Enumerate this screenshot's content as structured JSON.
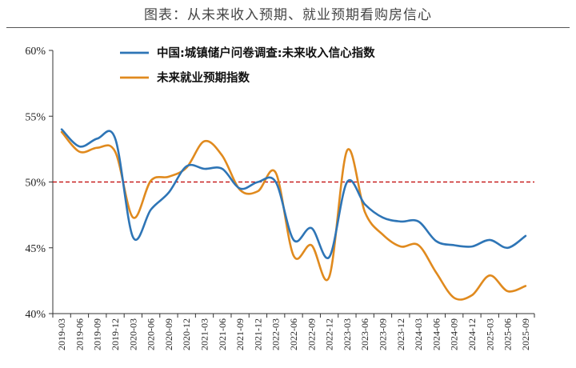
{
  "chart_data": {
    "type": "line",
    "title": "图表：从未来收入预期、就业预期看购房信心",
    "xlabel": "",
    "ylabel": "",
    "ylim": [
      40,
      60
    ],
    "y_ticks": [
      "40%",
      "45%",
      "50%",
      "55%",
      "60%"
    ],
    "y_tick_values": [
      40,
      45,
      50,
      55,
      60
    ],
    "reference_line": 50,
    "categories": [
      "2019-03",
      "2019-06",
      "2019-09",
      "2019-12",
      "2020-03",
      "2020-06",
      "2020-09",
      "2020-12",
      "2021-03",
      "2021-06",
      "2021-09",
      "2021-12",
      "2022-03",
      "2022-06",
      "2022-09",
      "2022-12",
      "2023-03",
      "2023-06",
      "2023-09",
      "2023-12",
      "2024-03",
      "2024-06",
      "2024-09",
      "2024-12",
      "2025-03",
      "2025-06",
      "2025-09"
    ],
    "legend_position": "top-left",
    "grid": false,
    "series": [
      {
        "name": "中国:城镇储户问卷调查:未来收入信心指数",
        "color": "#2e75b6",
        "values": [
          54.0,
          52.7,
          53.3,
          53.3,
          45.8,
          47.9,
          49.2,
          51.2,
          51.0,
          51.0,
          49.5,
          50.0,
          50.0,
          45.6,
          46.5,
          44.3,
          50.0,
          48.3,
          47.3,
          47.0,
          47.0,
          45.5,
          45.2,
          45.1,
          45.6,
          45.0,
          45.9
        ]
      },
      {
        "name": "未来就业预期指数",
        "color": "#e08a1e",
        "values": [
          53.8,
          52.3,
          52.6,
          52.3,
          47.3,
          50.1,
          50.4,
          51.1,
          53.1,
          52.0,
          49.4,
          49.3,
          50.7,
          44.4,
          45.2,
          42.8,
          52.4,
          47.7,
          46.0,
          45.1,
          45.2,
          43.1,
          41.2,
          41.4,
          42.9,
          41.7,
          42.1
        ]
      }
    ]
  }
}
